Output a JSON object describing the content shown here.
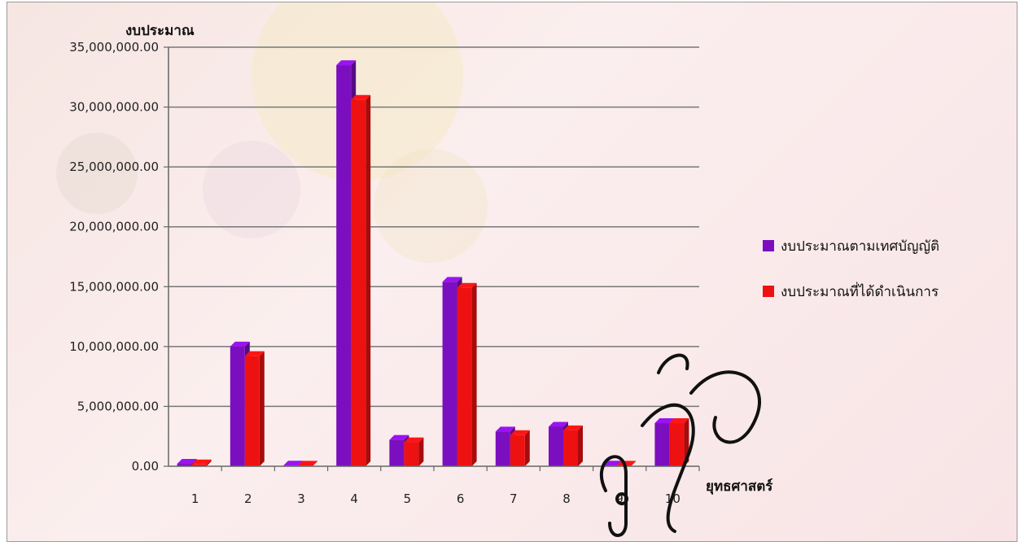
{
  "chart_data": {
    "type": "bar",
    "ylabel": "งบประมาณ",
    "xlabel": "ยุทธศาสตร์",
    "categories": [
      "1",
      "2",
      "3",
      "4",
      "5",
      "6",
      "7",
      "8",
      "9",
      "10"
    ],
    "y_ticks": [
      "0.00",
      "5,000,000.00",
      "10,000,000.00",
      "15,000,000.00",
      "20,000,000.00",
      "25,000,000.00",
      "30,000,000.00",
      "35,000,000.00"
    ],
    "ylim": [
      0,
      35000000
    ],
    "series": [
      {
        "name": "งบประมาณตามเทศบัญญัติ",
        "color": "#7b0fc0",
        "values": [
          200000,
          10000000,
          50000,
          33500000,
          2200000,
          15400000,
          2900000,
          3300000,
          50000,
          3600000
        ]
      },
      {
        "name": "งบประมาณที่ได้ดำเนินการ",
        "color": "#ee1111",
        "values": [
          150000,
          9200000,
          40000,
          30600000,
          2000000,
          14900000,
          2600000,
          3000000,
          40000,
          3600000
        ]
      }
    ],
    "grid": true,
    "legend_position": "right"
  },
  "watermark": "วิภาวดี"
}
